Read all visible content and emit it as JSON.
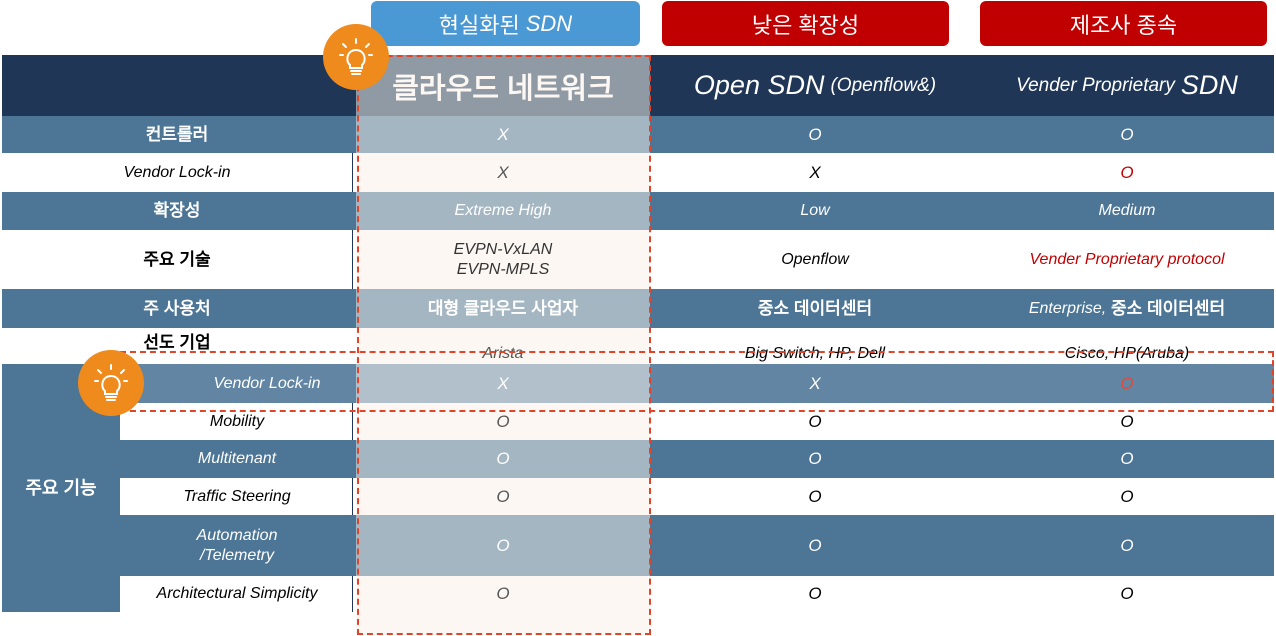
{
  "top_tags": [
    {
      "prefix": "현실화된",
      "suffix": "SDN"
    },
    {
      "label": "낮은 확장성"
    },
    {
      "label": "제조사 종속"
    }
  ],
  "header": {
    "col1": "클라우드 네트워크",
    "col2_main": "Open SDN",
    "col2_paren": "(Openflow&)",
    "col3_small": "Vender Proprietary",
    "col3_large": "SDN"
  },
  "rows": [
    {
      "label": "컨트롤러",
      "c1": "X",
      "c2": "O",
      "c3": "O"
    },
    {
      "label": "Vendor Lock-in",
      "c1": "X",
      "c2": "X",
      "c3": "O"
    },
    {
      "label": "확장성",
      "c1": "Extreme High",
      "c2": "Low",
      "c3": "Medium"
    },
    {
      "label": "주요 기술",
      "c1a": "EVPN-VxLAN",
      "c1b": "EVPN-MPLS",
      "c2": "Openflow",
      "c3": "Vender Proprietary protocol"
    },
    {
      "label": "주 사용처",
      "c1": "대형 클라우드 사업자",
      "c2": "중소 데이터센터",
      "c3_it": "Enterprise,",
      "c3_rest": " 중소 데이터센터"
    },
    {
      "label": "선도 기업",
      "c1": "Arista",
      "c2": "Big Switch, HP, Dell",
      "c3": "Cisco, HP(Aruba)"
    }
  ],
  "features_group_label": "주요 기능",
  "features": [
    {
      "label": "Vendor Lock-in",
      "c1": "X",
      "c2": "X",
      "c3": "O"
    },
    {
      "label": "Mobility",
      "c1": "O",
      "c2": "O",
      "c3": "O"
    },
    {
      "label": "Multitenant",
      "c1": "O",
      "c2": "O",
      "c3": "O"
    },
    {
      "label": "Traffic Steering",
      "c1": "O",
      "c2": "O",
      "c3": "O"
    },
    {
      "label_a": "Automation",
      "label_b": "/Telemetry",
      "c1": "O",
      "c2": "O",
      "c3": "O"
    },
    {
      "label": "Architectural Simplicity",
      "c1": "O",
      "c2": "O",
      "c3": "O"
    }
  ],
  "colors": {
    "header_bg": "#1f3656",
    "row_dark": "#4c7596",
    "tag_blue": "#4a98d4",
    "tag_red": "#c00000",
    "accent_orange": "#ef8a1d",
    "dashed_red": "#e0452a"
  },
  "icons": [
    "lightbulb-icon",
    "lightbulb-icon"
  ]
}
